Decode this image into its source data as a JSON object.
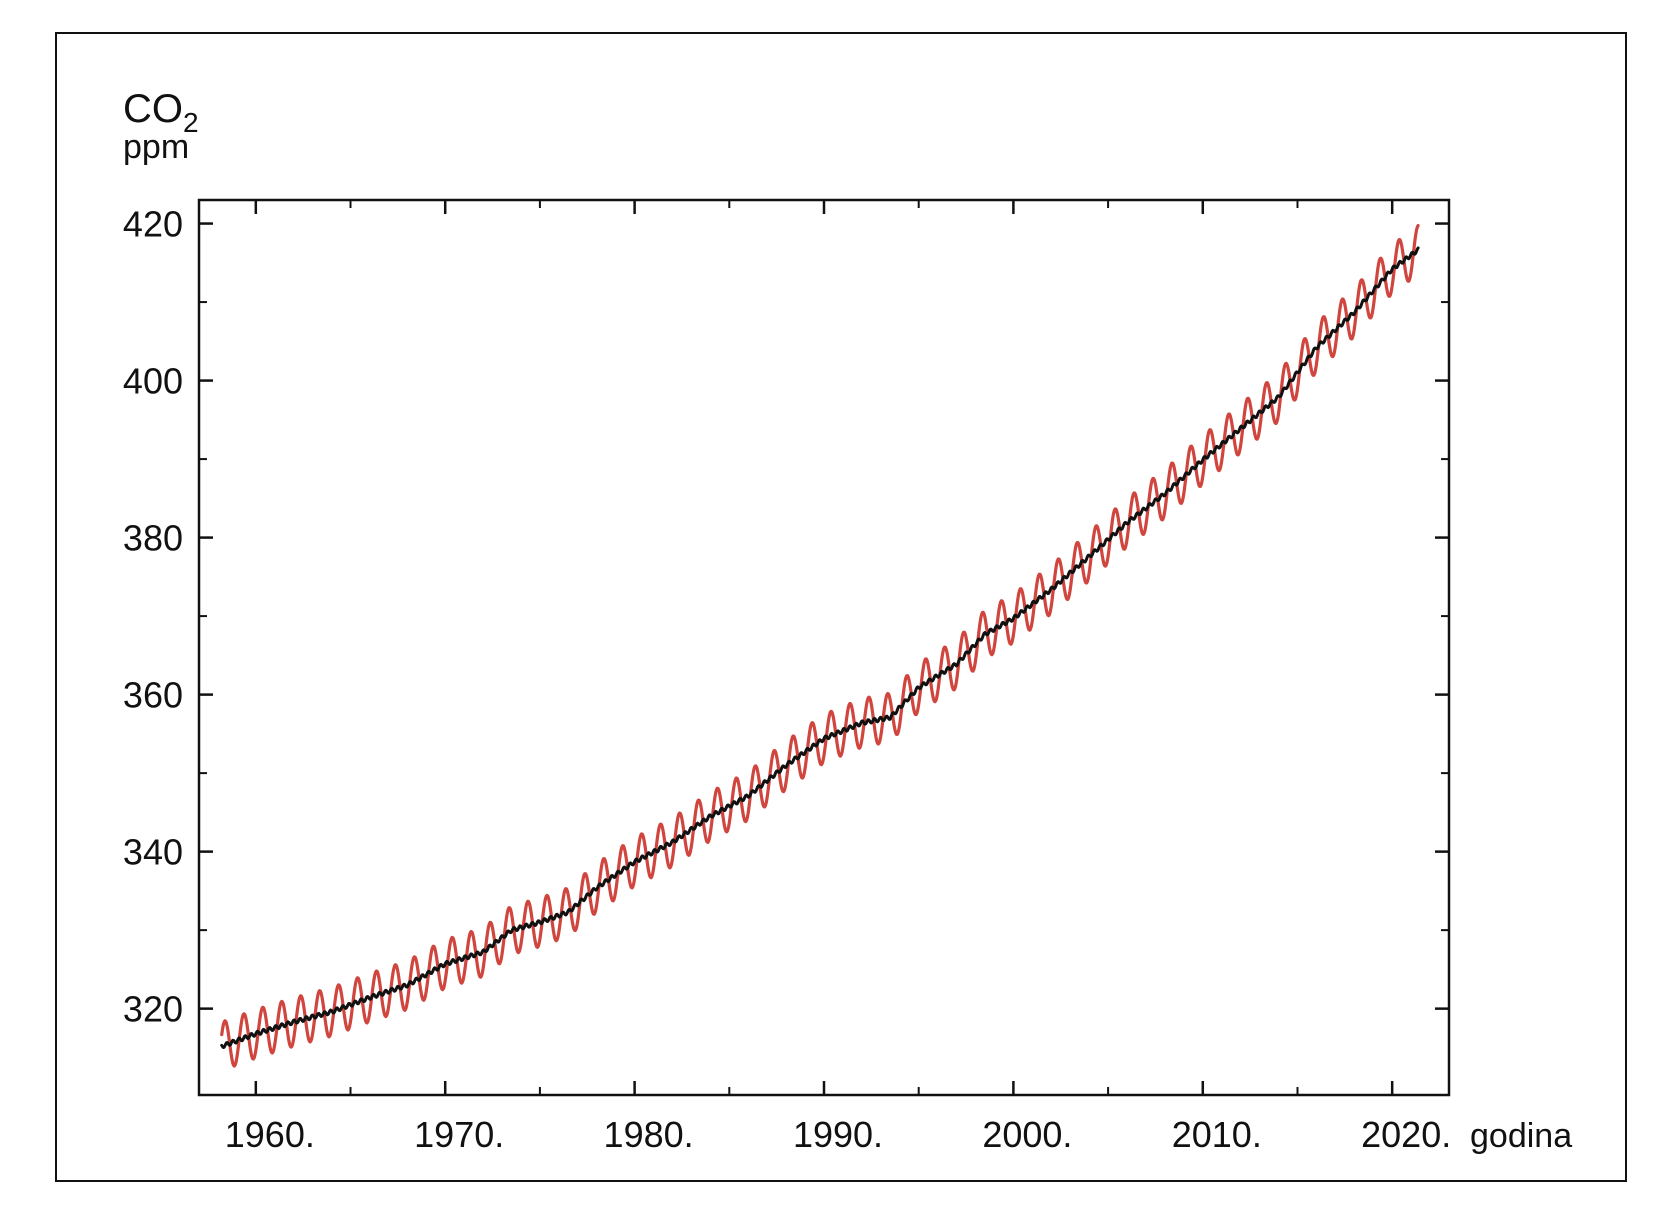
{
  "chart_data": {
    "type": "line",
    "title": "",
    "ylabel": {
      "quantity": "CO",
      "subscript": "2",
      "unit": "ppm"
    },
    "xlabel": "godina",
    "xlim": [
      1957,
      2023
    ],
    "ylim": [
      309,
      423
    ],
    "x_ticks": [
      1960,
      1970,
      1980,
      1990,
      2000,
      2010,
      2020
    ],
    "x_tick_labels": [
      "1960.",
      "1970.",
      "1980.",
      "1990.",
      "2000.",
      "2010.",
      "2020."
    ],
    "x_minor_ticks": [
      1965,
      1975,
      1985,
      1995,
      2005,
      2015
    ],
    "y_ticks": [
      320,
      340,
      360,
      380,
      400,
      420
    ],
    "y_tick_labels": [
      "320",
      "340",
      "360",
      "380",
      "400",
      "420"
    ],
    "y_minor_ticks": [
      330,
      350,
      370,
      390,
      410
    ],
    "grid": false,
    "legend": "none",
    "series": [
      {
        "style": "monthly-seasonal",
        "color": "#d0453e",
        "seasonal_amplitude_ppm": 3.1,
        "x": [
          1958.2,
          1960,
          1962,
          1964,
          1966,
          1968,
          1970,
          1972,
          1973.5,
          1975,
          1976.5,
          1978,
          1980,
          1982,
          1984,
          1986,
          1988,
          1990,
          1992,
          1993.5,
          1995,
          1997,
          1998.5,
          2000,
          2002,
          2004,
          2006,
          2008,
          2010,
          2012,
          2014,
          2016,
          2018,
          2020,
          2021.4
        ],
        "y": [
          315.2,
          316.8,
          318.3,
          319.6,
          321.4,
          323.0,
          325.7,
          327.2,
          330.0,
          331.0,
          332.3,
          335.4,
          338.7,
          341.2,
          344.5,
          347.1,
          351.0,
          354.4,
          356.4,
          357.1,
          360.9,
          363.9,
          367.7,
          369.7,
          373.4,
          377.6,
          381.9,
          385.6,
          389.9,
          393.9,
          397.9,
          404.2,
          408.7,
          414.2,
          416.7
        ]
      },
      {
        "style": "trend",
        "color": "#111111",
        "x": [
          1958.2,
          1960,
          1962,
          1964,
          1966,
          1968,
          1970,
          1972,
          1973.5,
          1975,
          1976.5,
          1978,
          1980,
          1982,
          1984,
          1986,
          1988,
          1990,
          1992,
          1993.5,
          1995,
          1997,
          1998.5,
          2000,
          2002,
          2004,
          2006,
          2008,
          2010,
          2012,
          2014,
          2016,
          2018,
          2020,
          2021.4
        ],
        "y": [
          315.2,
          316.8,
          318.3,
          319.6,
          321.4,
          323.0,
          325.7,
          327.2,
          330.0,
          331.0,
          332.3,
          335.4,
          338.7,
          341.2,
          344.5,
          347.1,
          351.0,
          354.4,
          356.4,
          357.1,
          360.9,
          363.9,
          367.7,
          369.7,
          373.4,
          377.6,
          381.9,
          385.6,
          389.9,
          393.9,
          397.9,
          404.2,
          408.7,
          414.2,
          416.7
        ]
      }
    ]
  }
}
